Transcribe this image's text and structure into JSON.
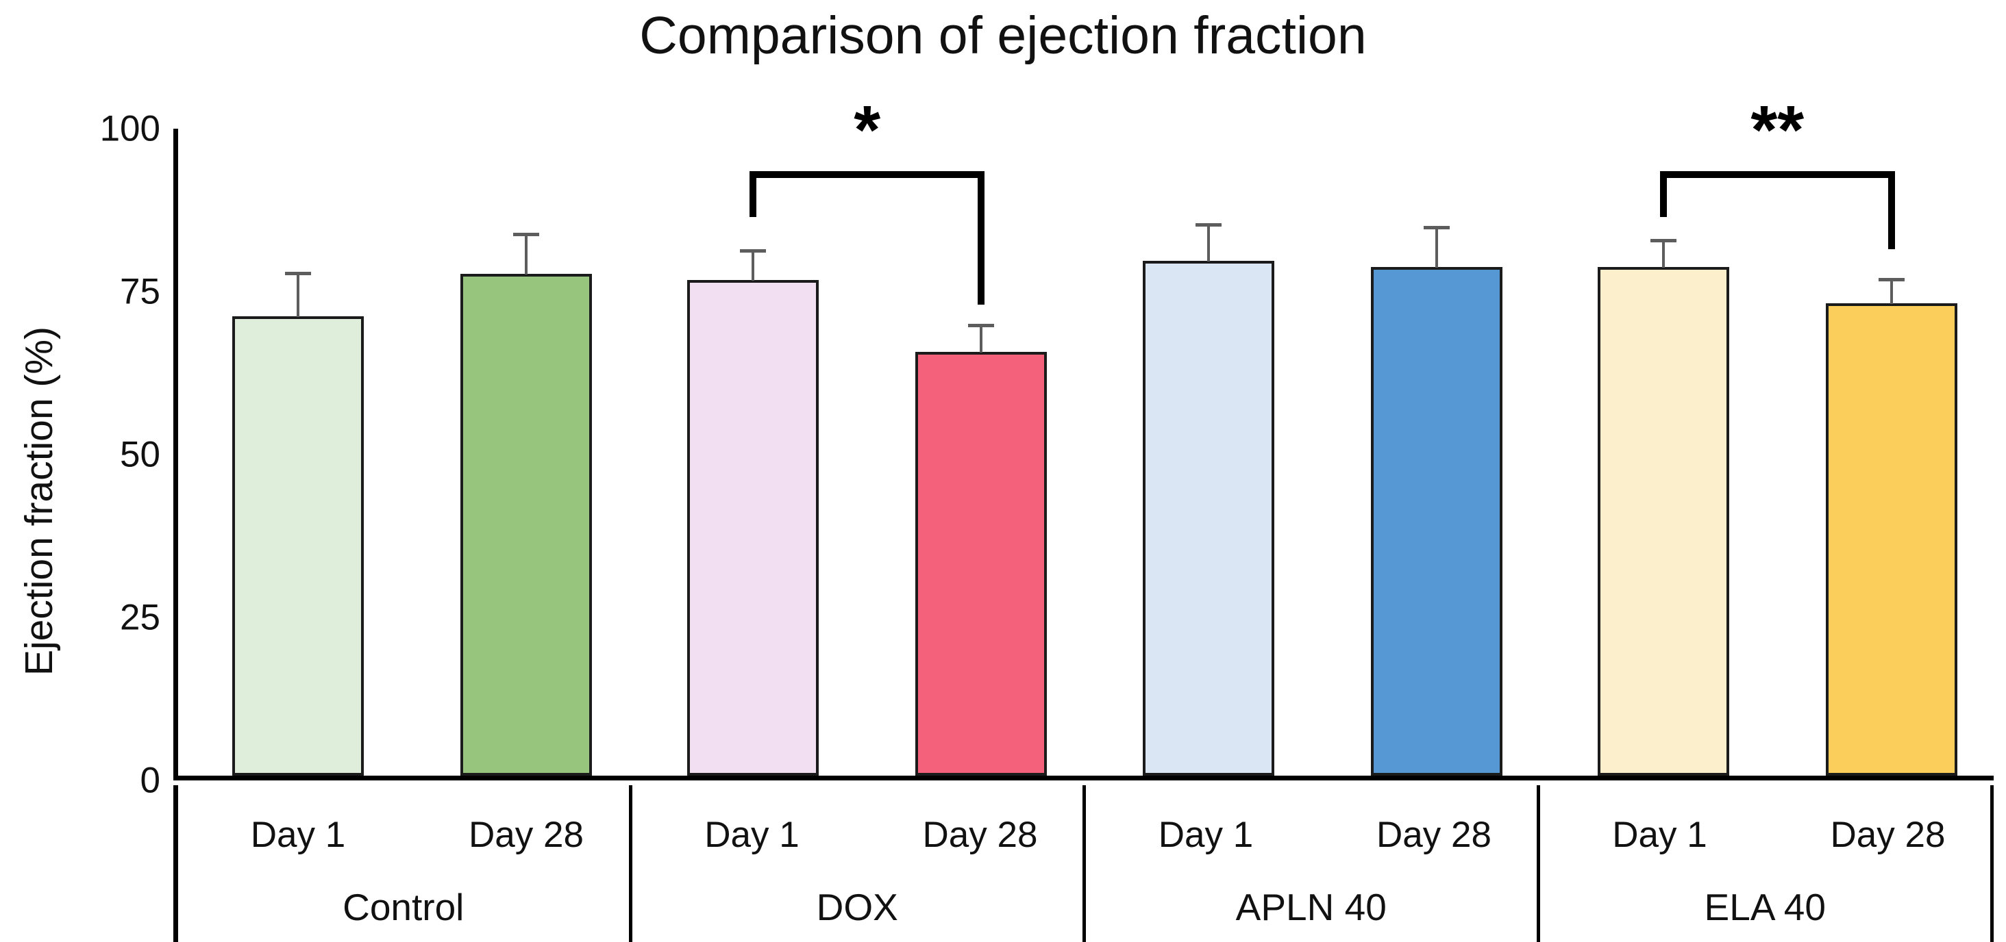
{
  "figure_title": "Comparison of ejection fraction",
  "chart_data": {
    "type": "bar",
    "title": "Comparison of ejection fraction",
    "ylabel": "Ejection fraction (%)",
    "xlabel": "",
    "ylim": [
      0,
      100
    ],
    "yticks": [
      0,
      25,
      50,
      75,
      100
    ],
    "grid": false,
    "legend_position": "none",
    "bar_outline_color": "#1b1b1b",
    "error_bar_color": "#5d5d5d",
    "axis_color": "#000000",
    "categories": [
      "Day 1",
      "Day 28"
    ],
    "groups": [
      {
        "label": "Control",
        "bars": [
          {
            "label": "Day 1",
            "value": 70.5,
            "error": 6.5,
            "color": "#dfeeda"
          },
          {
            "label": "Day 28",
            "value": 77,
            "error": 6,
            "color": "#97c57e"
          }
        ]
      },
      {
        "label": "DOX",
        "bars": [
          {
            "label": "Day 1",
            "value": 76,
            "error": 4.5,
            "color": "#f2dff2"
          },
          {
            "label": "Day 28",
            "value": 65,
            "error": 4,
            "color": "#f4617a"
          }
        ]
      },
      {
        "label": "APLN 40",
        "bars": [
          {
            "label": "Day 1",
            "value": 79,
            "error": 5.5,
            "color": "#dbe6f4"
          },
          {
            "label": "Day 28",
            "value": 78,
            "error": 6,
            "color": "#5598d4"
          }
        ]
      },
      {
        "label": "ELA 40",
        "bars": [
          {
            "label": "Day 1",
            "value": 78,
            "error": 4,
            "color": "#fcf0cc"
          },
          {
            "label": "Day 28",
            "value": 72.5,
            "error": 3.5,
            "color": "#fbce5b"
          }
        ]
      }
    ],
    "significance": [
      {
        "group_index": 1,
        "bar_from": 0,
        "bar_to": 1,
        "label": "*",
        "bracket_y": 93.5,
        "from_arm_bottom_y": 86.5,
        "to_arm_bottom_y": 73
      },
      {
        "group_index": 3,
        "bar_from": 0,
        "bar_to": 1,
        "label": "**",
        "bracket_y": 93.5,
        "from_arm_bottom_y": 86.5,
        "to_arm_bottom_y": 81.5
      }
    ]
  }
}
